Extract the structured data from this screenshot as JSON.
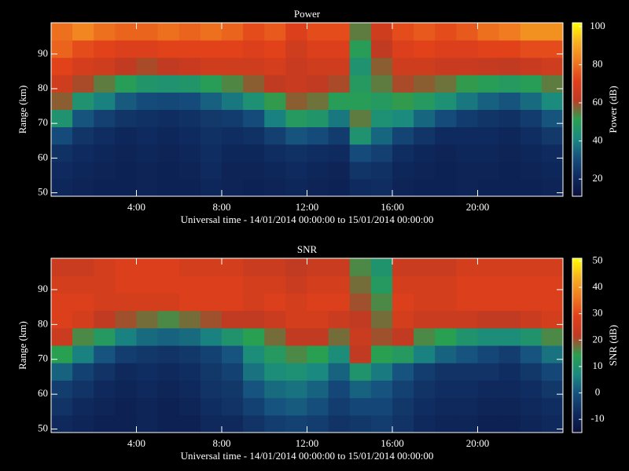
{
  "chart_data": [
    {
      "type": "heatmap",
      "title": "Power",
      "xlabel": "Universal time - 14/01/2014 00:00:00 to 15/01/2014 00:00:00",
      "ylabel": "Range (km)",
      "colorbar_label": "Power (dB)",
      "x_edges": [
        0,
        1,
        2,
        3,
        4,
        5,
        6,
        7,
        8,
        9,
        10,
        11,
        12,
        13,
        14,
        15,
        16,
        17,
        18,
        19,
        20,
        21,
        22,
        23,
        24
      ],
      "y_edges": [
        49,
        54,
        59,
        64,
        69,
        74,
        79,
        84,
        89,
        94,
        99
      ],
      "values": [
        [
          20,
          19,
          18,
          18,
          19,
          18,
          18,
          20,
          19,
          18,
          19,
          20,
          19,
          18,
          21,
          22,
          19,
          18,
          18,
          19,
          18,
          18,
          18,
          19
        ],
        [
          21,
          20,
          19,
          18,
          19,
          18,
          19,
          21,
          19,
          19,
          20,
          21,
          20,
          19,
          24,
          23,
          20,
          19,
          18,
          19,
          19,
          18,
          19,
          20
        ],
        [
          23,
          21,
          20,
          19,
          20,
          19,
          20,
          22,
          20,
          20,
          22,
          23,
          22,
          21,
          30,
          27,
          22,
          20,
          19,
          20,
          20,
          19,
          20,
          21
        ],
        [
          30,
          24,
          22,
          20,
          21,
          20,
          21,
          23,
          22,
          23,
          27,
          32,
          30,
          26,
          45,
          35,
          28,
          24,
          21,
          21,
          21,
          20,
          22,
          25
        ],
        [
          45,
          32,
          27,
          24,
          23,
          22,
          23,
          25,
          26,
          30,
          40,
          48,
          46,
          38,
          55,
          44,
          42,
          35,
          30,
          26,
          24,
          23,
          26,
          32
        ],
        [
          58,
          45,
          40,
          33,
          30,
          29,
          30,
          34,
          38,
          44,
          52,
          58,
          56,
          50,
          50,
          48,
          52,
          48,
          44,
          38,
          34,
          32,
          36,
          42
        ],
        [
          66,
          60,
          55,
          50,
          46,
          45,
          46,
          50,
          54,
          58,
          62,
          64,
          62,
          60,
          48,
          55,
          60,
          58,
          56,
          52,
          50,
          48,
          50,
          55
        ],
        [
          72,
          68,
          66,
          62,
          60,
          62,
          64,
          66,
          66,
          66,
          68,
          64,
          66,
          66,
          45,
          58,
          66,
          66,
          64,
          64,
          63,
          62,
          64,
          66
        ],
        [
          78,
          74,
          72,
          70,
          70,
          72,
          72,
          72,
          72,
          70,
          72,
          66,
          70,
          70,
          50,
          62,
          70,
          72,
          70,
          70,
          72,
          72,
          74,
          74
        ],
        [
          80,
          84,
          80,
          78,
          78,
          80,
          78,
          80,
          78,
          74,
          76,
          70,
          74,
          74,
          55,
          66,
          74,
          76,
          74,
          76,
          80,
          82,
          86,
          86
        ]
      ],
      "xlim": [
        0,
        24
      ],
      "xticks": [
        {
          "value": 4,
          "label": "4:00"
        },
        {
          "value": 8,
          "label": "8:00"
        },
        {
          "value": 12,
          "label": "12:00"
        },
        {
          "value": 16,
          "label": "16:00"
        },
        {
          "value": 20,
          "label": "20:00"
        }
      ],
      "ylim": [
        49,
        99
      ],
      "yticks": [
        50,
        60,
        70,
        80,
        90
      ],
      "zlim": [
        11,
        102
      ],
      "zticks": [
        20,
        40,
        60,
        80,
        100
      ],
      "colormap": [
        "#0a0f3c",
        "#0f2a5e",
        "#16507e",
        "#1a8a80",
        "#2aa050",
        "#c03a22",
        "#e0401a",
        "#f07a20",
        "#f8b020",
        "#ffff00"
      ]
    },
    {
      "type": "heatmap",
      "title": "SNR",
      "xlabel": "Universal time - 14/01/2014 00:00:00 to 15/01/2014 00:00:00",
      "ylabel": "Range (km)",
      "colorbar_label": "SNR (dB)",
      "x_edges": [
        0,
        1,
        2,
        3,
        4,
        5,
        6,
        7,
        8,
        9,
        10,
        11,
        12,
        13,
        14,
        15,
        16,
        17,
        18,
        19,
        20,
        21,
        22,
        23,
        24
      ],
      "y_edges": [
        49,
        54,
        59,
        64,
        69,
        74,
        79,
        84,
        89,
        94,
        99
      ],
      "values": [
        [
          -8,
          -9,
          -10,
          -10,
          -9,
          -10,
          -10,
          -8,
          -8,
          -6,
          -4,
          -3,
          -4,
          -6,
          -5,
          -4,
          -6,
          -8,
          -9,
          -9,
          -10,
          -10,
          -9,
          -8
        ],
        [
          -6,
          -8,
          -9,
          -10,
          -9,
          -10,
          -9,
          -7,
          -6,
          -3,
          0,
          1,
          -1,
          -4,
          -2,
          -2,
          -5,
          -7,
          -8,
          -8,
          -9,
          -9,
          -8,
          -7
        ],
        [
          -4,
          -6,
          -8,
          -9,
          -8,
          -9,
          -8,
          -6,
          -5,
          0,
          3,
          4,
          2,
          -2,
          2,
          0,
          -3,
          -6,
          -7,
          -7,
          -8,
          -8,
          -7,
          -5
        ],
        [
          2,
          -3,
          -6,
          -8,
          -7,
          -8,
          -7,
          -5,
          -3,
          4,
          8,
          9,
          7,
          2,
          10,
          5,
          0,
          -4,
          -6,
          -6,
          -6,
          -7,
          -5,
          -2
        ],
        [
          14,
          6,
          0,
          -4,
          -5,
          -6,
          -5,
          -3,
          0,
          8,
          12,
          16,
          14,
          8,
          22,
          14,
          12,
          6,
          2,
          0,
          -2,
          -4,
          0,
          4
        ],
        [
          24,
          16,
          12,
          6,
          3,
          2,
          3,
          6,
          10,
          14,
          18,
          22,
          22,
          18,
          24,
          20,
          22,
          16,
          14,
          10,
          8,
          8,
          10,
          16
        ],
        [
          28,
          26,
          22,
          20,
          18,
          16,
          18,
          20,
          22,
          22,
          24,
          26,
          26,
          24,
          22,
          18,
          26,
          24,
          24,
          24,
          22,
          22,
          24,
          26
        ],
        [
          28,
          28,
          26,
          26,
          26,
          26,
          28,
          28,
          28,
          26,
          28,
          26,
          28,
          28,
          20,
          16,
          28,
          26,
          26,
          28,
          28,
          28,
          28,
          28
        ],
        [
          26,
          26,
          26,
          28,
          28,
          28,
          28,
          28,
          28,
          26,
          26,
          24,
          26,
          26,
          18,
          12,
          26,
          26,
          26,
          28,
          28,
          28,
          28,
          28
        ],
        [
          24,
          24,
          26,
          28,
          28,
          28,
          26,
          26,
          26,
          24,
          24,
          22,
          24,
          24,
          16,
          10,
          24,
          24,
          24,
          26,
          26,
          26,
          26,
          26
        ]
      ],
      "xlim": [
        0,
        24
      ],
      "xticks": [
        {
          "value": 4,
          "label": "4:00"
        },
        {
          "value": 8,
          "label": "8:00"
        },
        {
          "value": 12,
          "label": "12:00"
        },
        {
          "value": 16,
          "label": "16:00"
        },
        {
          "value": 20,
          "label": "20:00"
        }
      ],
      "ylim": [
        49,
        99
      ],
      "yticks": [
        50,
        60,
        70,
        80,
        90
      ],
      "zlim": [
        -15,
        51
      ],
      "zticks": [
        -10,
        0,
        10,
        20,
        30,
        40,
        50
      ],
      "colormap": [
        "#0a0f3c",
        "#0f2a5e",
        "#16507e",
        "#1a8a80",
        "#2aa050",
        "#c03a22",
        "#e0401a",
        "#f07a20",
        "#f8b020",
        "#ffff00"
      ]
    }
  ]
}
